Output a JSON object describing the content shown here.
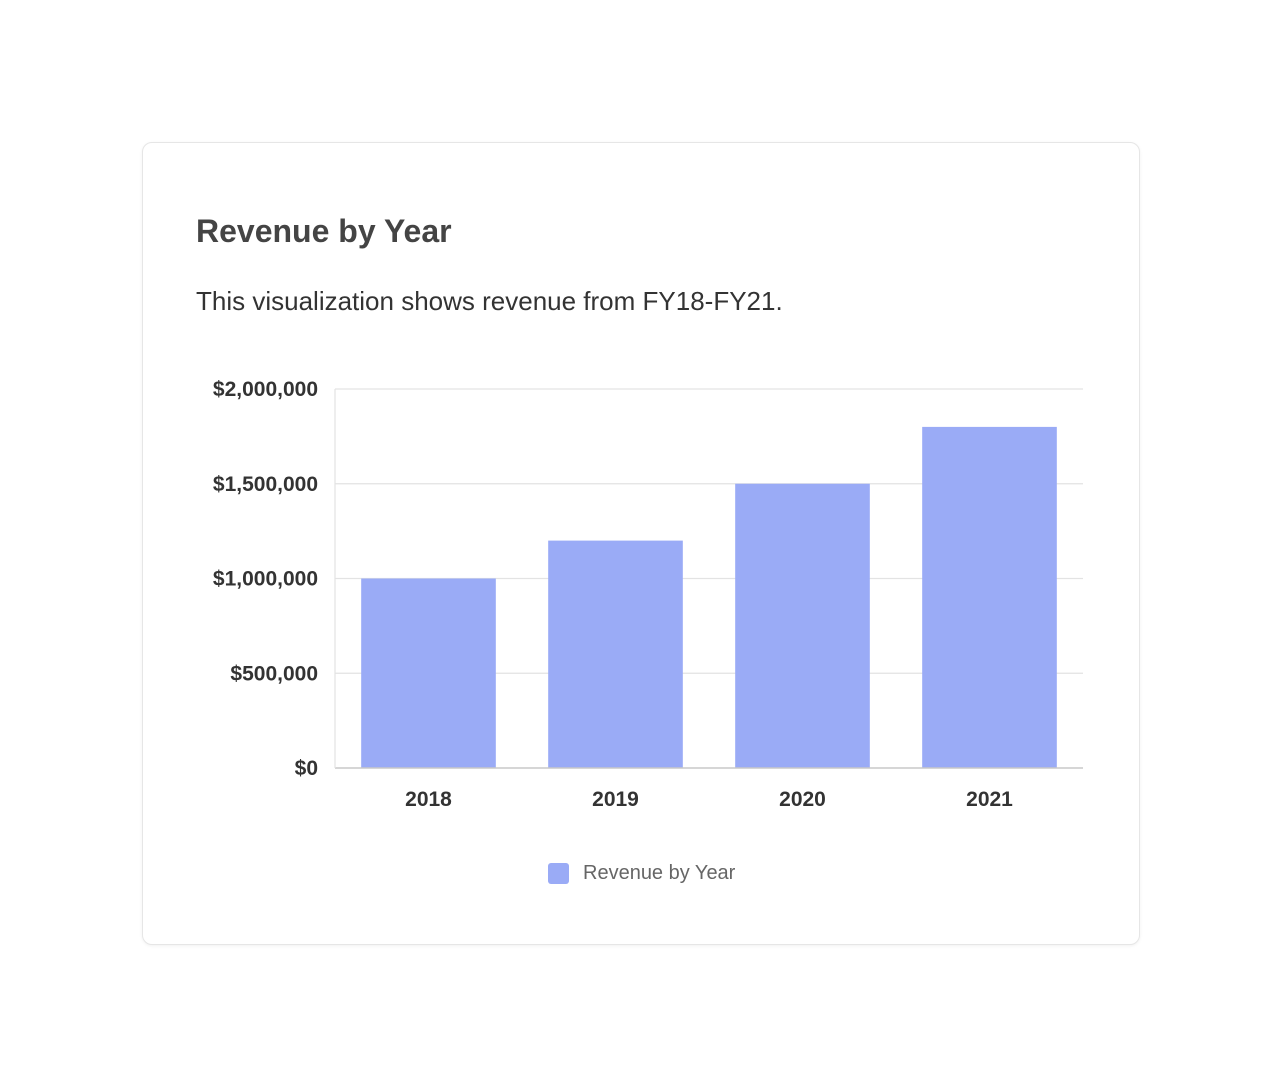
{
  "card": {
    "title": "Revenue by Year",
    "subtitle": "This visualization shows revenue from FY18-FY21."
  },
  "colors": {
    "bar": "#9aabf6",
    "grid": "#e3e3e3",
    "axis": "#c8c8c8"
  },
  "chart_data": {
    "type": "bar",
    "title": "Revenue by Year",
    "subtitle": "This visualization shows revenue from FY18-FY21.",
    "categories": [
      "2018",
      "2019",
      "2020",
      "2021"
    ],
    "series": [
      {
        "name": "Revenue by Year",
        "values": [
          1000000,
          1200000,
          1500000,
          1800000
        ]
      }
    ],
    "ylim": [
      0,
      2000000
    ],
    "yticks": [
      0,
      500000,
      1000000,
      1500000,
      2000000
    ],
    "ytick_labels": [
      "$0",
      "$500,000",
      "$1,000,000",
      "$1,500,000",
      "$2,000,000"
    ],
    "grid": true,
    "legend_position": "bottom-center"
  }
}
